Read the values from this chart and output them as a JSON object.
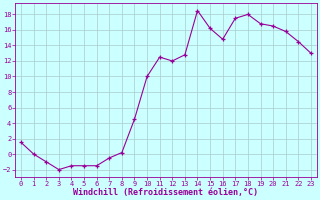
{
  "x": [
    0,
    1,
    2,
    3,
    4,
    5,
    6,
    7,
    8,
    9,
    10,
    11,
    12,
    13,
    14,
    15,
    16,
    17,
    18,
    19,
    20,
    21,
    22,
    23
  ],
  "y": [
    1.5,
    0.0,
    -1.0,
    -2.0,
    -1.5,
    -1.5,
    -1.5,
    -0.5,
    0.2,
    4.5,
    10.0,
    12.5,
    12.0,
    12.8,
    18.5,
    16.2,
    14.8,
    17.5,
    18.0,
    16.8,
    16.5,
    15.8,
    14.5,
    13.0
  ],
  "xlabel": "Windchill (Refroidissement éolien,°C)",
  "line_color": "#990099",
  "marker_color": "#990099",
  "bg_color": "#ccffff",
  "grid_color": "#aacccc",
  "spine_color": "#990099",
  "tick_color": "#990099",
  "xlabel_color": "#990099",
  "ylim": [
    -3,
    19.5
  ],
  "xlim": [
    -0.5,
    23.5
  ],
  "yticks": [
    -2,
    0,
    2,
    4,
    6,
    8,
    10,
    12,
    14,
    16,
    18
  ],
  "xticks": [
    0,
    1,
    2,
    3,
    4,
    5,
    6,
    7,
    8,
    9,
    10,
    11,
    12,
    13,
    14,
    15,
    16,
    17,
    18,
    19,
    20,
    21,
    22,
    23
  ],
  "xlabel_fontsize": 6.0,
  "tick_fontsize": 5.0
}
